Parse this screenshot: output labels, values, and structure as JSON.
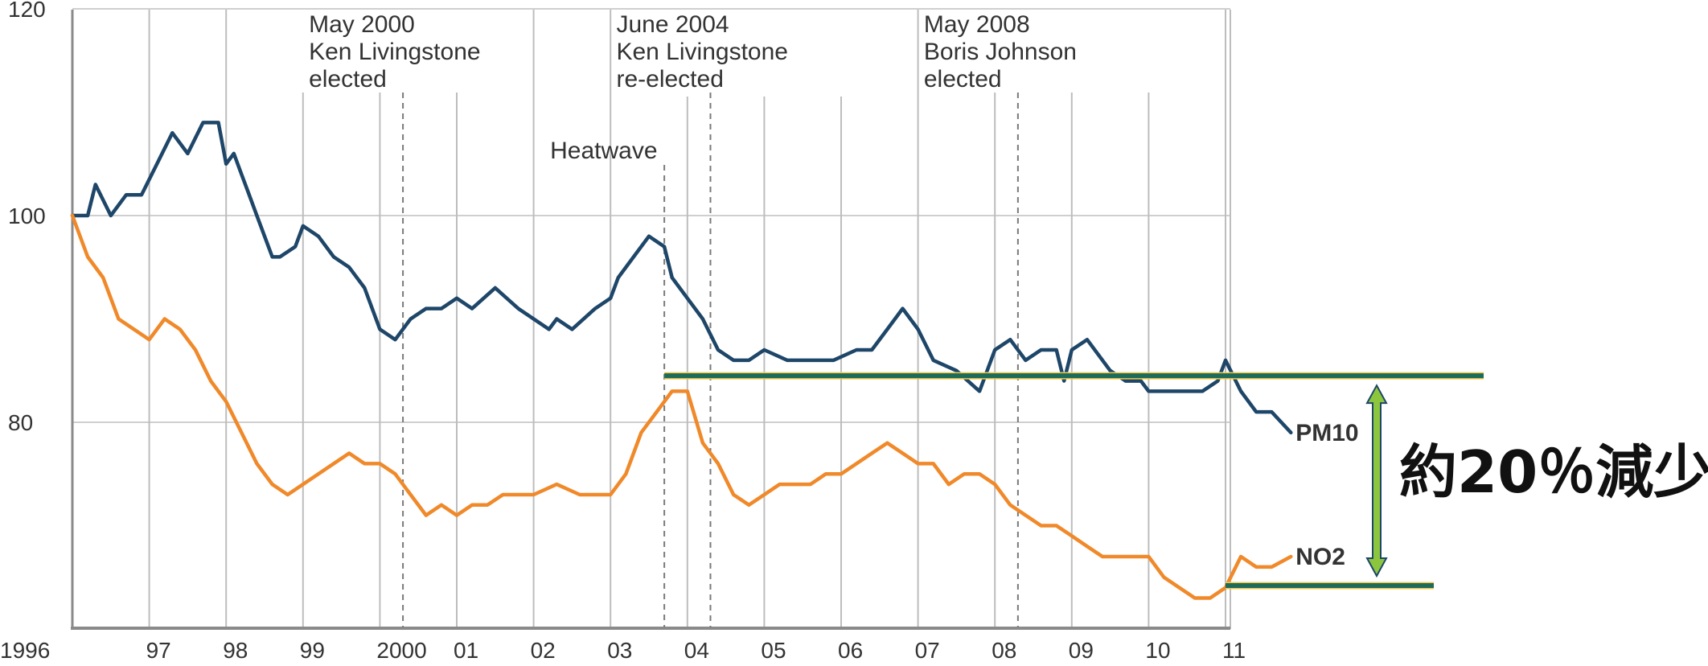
{
  "chart_data": {
    "type": "line",
    "xlim": [
      1996,
      2012
    ],
    "ylim": [
      60,
      120
    ],
    "yticks": [
      80,
      100,
      120
    ],
    "xticks": [
      {
        "value": 1996,
        "label": "1996"
      },
      {
        "value": 1997,
        "label": "97"
      },
      {
        "value": 1998,
        "label": "98"
      },
      {
        "value": 1999,
        "label": "99"
      },
      {
        "value": 2000,
        "label": "2000"
      },
      {
        "value": 2001,
        "label": "01"
      },
      {
        "value": 2002,
        "label": "02"
      },
      {
        "value": 2003,
        "label": "03"
      },
      {
        "value": 2004,
        "label": "04"
      },
      {
        "value": 2005,
        "label": "05"
      },
      {
        "value": 2006,
        "label": "06"
      },
      {
        "value": 2007,
        "label": "07"
      },
      {
        "value": 2008,
        "label": "08"
      },
      {
        "value": 2009,
        "label": "09"
      },
      {
        "value": 2010,
        "label": "10"
      },
      {
        "value": 2011,
        "label": "11"
      }
    ],
    "grid": "vertical and horizontal",
    "series": [
      {
        "name": "PM10",
        "color": "#1e4668",
        "x": [
          1996.0,
          1996.2,
          1996.3,
          1996.5,
          1996.7,
          1996.9,
          1997.1,
          1997.3,
          1997.5,
          1997.7,
          1997.9,
          1998.0,
          1998.1,
          1998.2,
          1998.3,
          1998.4,
          1998.5,
          1998.6,
          1998.7,
          1998.9,
          1999.0,
          1999.2,
          1999.4,
          1999.6,
          1999.8,
          2000.0,
          2000.2,
          2000.4,
          2000.6,
          2000.8,
          2001.0,
          2001.2,
          2001.5,
          2001.8,
          2002.0,
          2002.2,
          2002.3,
          2002.5,
          2002.8,
          2003.0,
          2003.1,
          2003.3,
          2003.5,
          2003.7,
          2003.8,
          2004.0,
          2004.2,
          2004.4,
          2004.6,
          2004.8,
          2005.0,
          2005.3,
          2005.6,
          2005.9,
          2006.2,
          2006.4,
          2006.6,
          2006.8,
          2007.0,
          2007.2,
          2007.5,
          2007.8,
          2008.0,
          2008.2,
          2008.4,
          2008.6,
          2008.8,
          2008.9,
          2009.0,
          2009.2,
          2009.5,
          2009.7,
          2009.9,
          2010.0,
          2010.2,
          2010.4,
          2010.7,
          2010.9,
          2011.0,
          2011.2,
          2011.4,
          2011.6,
          2011.85
        ],
        "y": [
          100,
          100,
          103,
          100,
          102,
          102,
          105,
          108,
          106,
          109,
          109,
          105,
          106,
          104,
          102,
          100,
          98,
          96,
          96,
          97,
          99,
          98,
          96,
          95,
          93,
          89,
          88,
          90,
          91,
          91,
          92,
          91,
          93,
          91,
          90,
          89,
          90,
          89,
          91,
          92,
          94,
          96,
          98,
          97,
          94,
          92,
          90,
          87,
          86,
          86,
          87,
          86,
          86,
          86,
          87,
          87,
          89,
          91,
          89,
          86,
          85,
          83,
          87,
          88,
          86,
          87,
          87,
          84,
          87,
          88,
          85,
          84,
          84,
          83,
          83,
          83,
          83,
          84,
          86,
          83,
          81,
          81,
          79
        ]
      },
      {
        "name": "NO2",
        "color": "#f0892a",
        "x": [
          1996.0,
          1996.2,
          1996.4,
          1996.6,
          1996.8,
          1997.0,
          1997.2,
          1997.4,
          1997.6,
          1997.8,
          1998.0,
          1998.2,
          1998.4,
          1998.6,
          1998.8,
          1999.0,
          1999.2,
          1999.4,
          1999.6,
          1999.8,
          2000.0,
          2000.2,
          2000.4,
          2000.6,
          2000.8,
          2001.0,
          2001.2,
          2001.4,
          2001.6,
          2001.8,
          2002.0,
          2002.3,
          2002.6,
          2002.9,
          2003.0,
          2003.2,
          2003.4,
          2003.6,
          2003.8,
          2004.0,
          2004.2,
          2004.4,
          2004.6,
          2004.8,
          2005.0,
          2005.2,
          2005.4,
          2005.6,
          2005.8,
          2006.0,
          2006.2,
          2006.4,
          2006.6,
          2006.8,
          2007.0,
          2007.2,
          2007.4,
          2007.6,
          2007.8,
          2008.0,
          2008.2,
          2008.4,
          2008.6,
          2008.8,
          2009.0,
          2009.2,
          2009.4,
          2009.6,
          2009.8,
          2010.0,
          2010.2,
          2010.4,
          2010.6,
          2010.8,
          2011.0,
          2011.2,
          2011.4,
          2011.6,
          2011.85
        ],
        "y": [
          100,
          96,
          94,
          90,
          89,
          88,
          90,
          89,
          87,
          84,
          82,
          79,
          76,
          74,
          73,
          74,
          75,
          76,
          77,
          76,
          76,
          75,
          73,
          71,
          72,
          71,
          72,
          72,
          73,
          73,
          73,
          74,
          73,
          73,
          73,
          75,
          79,
          81,
          83,
          83,
          78,
          76,
          73,
          72,
          73,
          74,
          74,
          74,
          75,
          75,
          76,
          77,
          78,
          77,
          76,
          76,
          74,
          75,
          75,
          74,
          72,
          71,
          70,
          70,
          69,
          68,
          67,
          67,
          67,
          67,
          65,
          64,
          63,
          63,
          64,
          67,
          66,
          66,
          67
        ]
      }
    ],
    "annotations": [
      {
        "x": 2000.3,
        "lines": [
          "May 2000",
          "Ken Livingstone",
          "elected"
        ]
      },
      {
        "x": 2004.3,
        "lines": [
          "June 2004",
          "Ken Livingstone",
          "re-elected"
        ]
      },
      {
        "x": 2008.3,
        "lines": [
          "May 2008",
          "Boris Johnson",
          "elected"
        ]
      },
      {
        "x": 2003.7,
        "lines": [
          "Heatwave"
        ]
      }
    ],
    "reference_lines": [
      {
        "y": 84.5,
        "x_start": 2003.7,
        "color": "#1e6b5a"
      },
      {
        "y": 64.2,
        "x_start": 2011.0,
        "color": "#1e6b5a"
      }
    ],
    "reduction_arrow": {
      "color": "#8cc63f",
      "label": "約20％減少"
    }
  }
}
